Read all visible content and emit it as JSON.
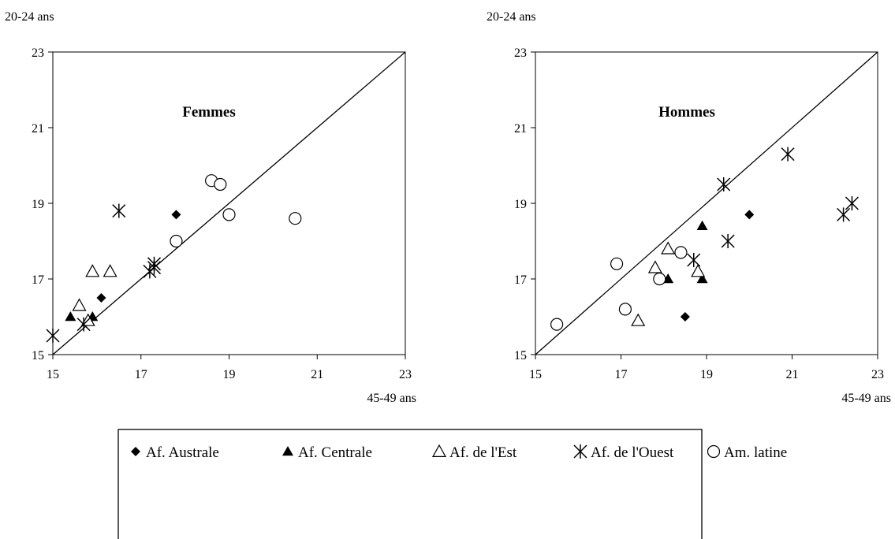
{
  "chart_data": [
    {
      "type": "scatter",
      "title": "Femmes",
      "xlabel": "45-49 ans",
      "ylabel": "20-24 ans",
      "xlim": [
        15,
        23
      ],
      "ylim": [
        15,
        23
      ],
      "xticks": [
        "15",
        "17",
        "19",
        "21",
        "23"
      ],
      "yticks": [
        "15",
        "17",
        "19",
        "21",
        "23"
      ],
      "reference_line": "y = x",
      "series": [
        {
          "name": "Af. Australe",
          "marker": "diamond-filled",
          "points": [
            [
              16.1,
              16.5
            ],
            [
              17.8,
              18.7
            ]
          ]
        },
        {
          "name": "Af. Centrale",
          "marker": "triangle-filled",
          "points": [
            [
              15.4,
              16.0
            ],
            [
              15.9,
              16.0
            ]
          ]
        },
        {
          "name": "Af. de l'Est",
          "marker": "triangle-open",
          "points": [
            [
              15.6,
              16.3
            ],
            [
              15.9,
              17.2
            ],
            [
              16.3,
              17.2
            ],
            [
              15.8,
              15.9
            ]
          ]
        },
        {
          "name": "Af. de l'Ouest",
          "marker": "asterisk",
          "points": [
            [
              15.0,
              15.5
            ],
            [
              15.7,
              15.8
            ],
            [
              16.5,
              18.8
            ],
            [
              17.2,
              17.2
            ],
            [
              17.3,
              17.3
            ],
            [
              17.3,
              17.4
            ]
          ]
        },
        {
          "name": "Am. latine",
          "marker": "circle-open",
          "points": [
            [
              17.8,
              18.0
            ],
            [
              18.6,
              19.6
            ],
            [
              18.8,
              19.5
            ],
            [
              19.0,
              18.7
            ],
            [
              20.5,
              18.6
            ]
          ]
        }
      ]
    },
    {
      "type": "scatter",
      "title": "Hommes",
      "xlabel": "45-49 ans",
      "ylabel": "20-24 ans",
      "xlim": [
        15,
        23
      ],
      "ylim": [
        15,
        23
      ],
      "xticks": [
        "15",
        "17",
        "19",
        "21",
        "23"
      ],
      "yticks": [
        "15",
        "17",
        "19",
        "21",
        "23"
      ],
      "reference_line": "y = x",
      "series": [
        {
          "name": "Af. Australe",
          "marker": "diamond-filled",
          "points": [
            [
              18.5,
              16.0
            ],
            [
              20.0,
              18.7
            ]
          ]
        },
        {
          "name": "Af. Centrale",
          "marker": "triangle-filled",
          "points": [
            [
              18.1,
              17.0
            ],
            [
              18.9,
              17.0
            ],
            [
              18.9,
              18.4
            ]
          ]
        },
        {
          "name": "Af. de l'Est",
          "marker": "triangle-open",
          "points": [
            [
              17.4,
              15.9
            ],
            [
              17.8,
              17.3
            ],
            [
              18.1,
              17.8
            ],
            [
              18.8,
              17.2
            ]
          ]
        },
        {
          "name": "Af. de l'Ouest",
          "marker": "asterisk",
          "points": [
            [
              18.7,
              17.5
            ],
            [
              19.4,
              19.5
            ],
            [
              19.5,
              18.0
            ],
            [
              20.9,
              20.3
            ],
            [
              22.2,
              18.7
            ],
            [
              22.4,
              19.0
            ]
          ]
        },
        {
          "name": "Am. latine",
          "marker": "circle-open",
          "points": [
            [
              15.5,
              15.8
            ],
            [
              16.9,
              17.4
            ],
            [
              17.1,
              16.2
            ],
            [
              17.9,
              17.0
            ],
            [
              18.4,
              17.7
            ]
          ]
        }
      ]
    }
  ],
  "legend": {
    "items": [
      {
        "label": "Af. Australe",
        "marker": "diamond-filled"
      },
      {
        "label": "Af. Centrale",
        "marker": "triangle-filled"
      },
      {
        "label": "Af. de l'Est",
        "marker": "triangle-open"
      },
      {
        "label": "Af. de l'Ouest",
        "marker": "asterisk"
      },
      {
        "label": "Am. latine",
        "marker": "circle-open"
      }
    ]
  }
}
